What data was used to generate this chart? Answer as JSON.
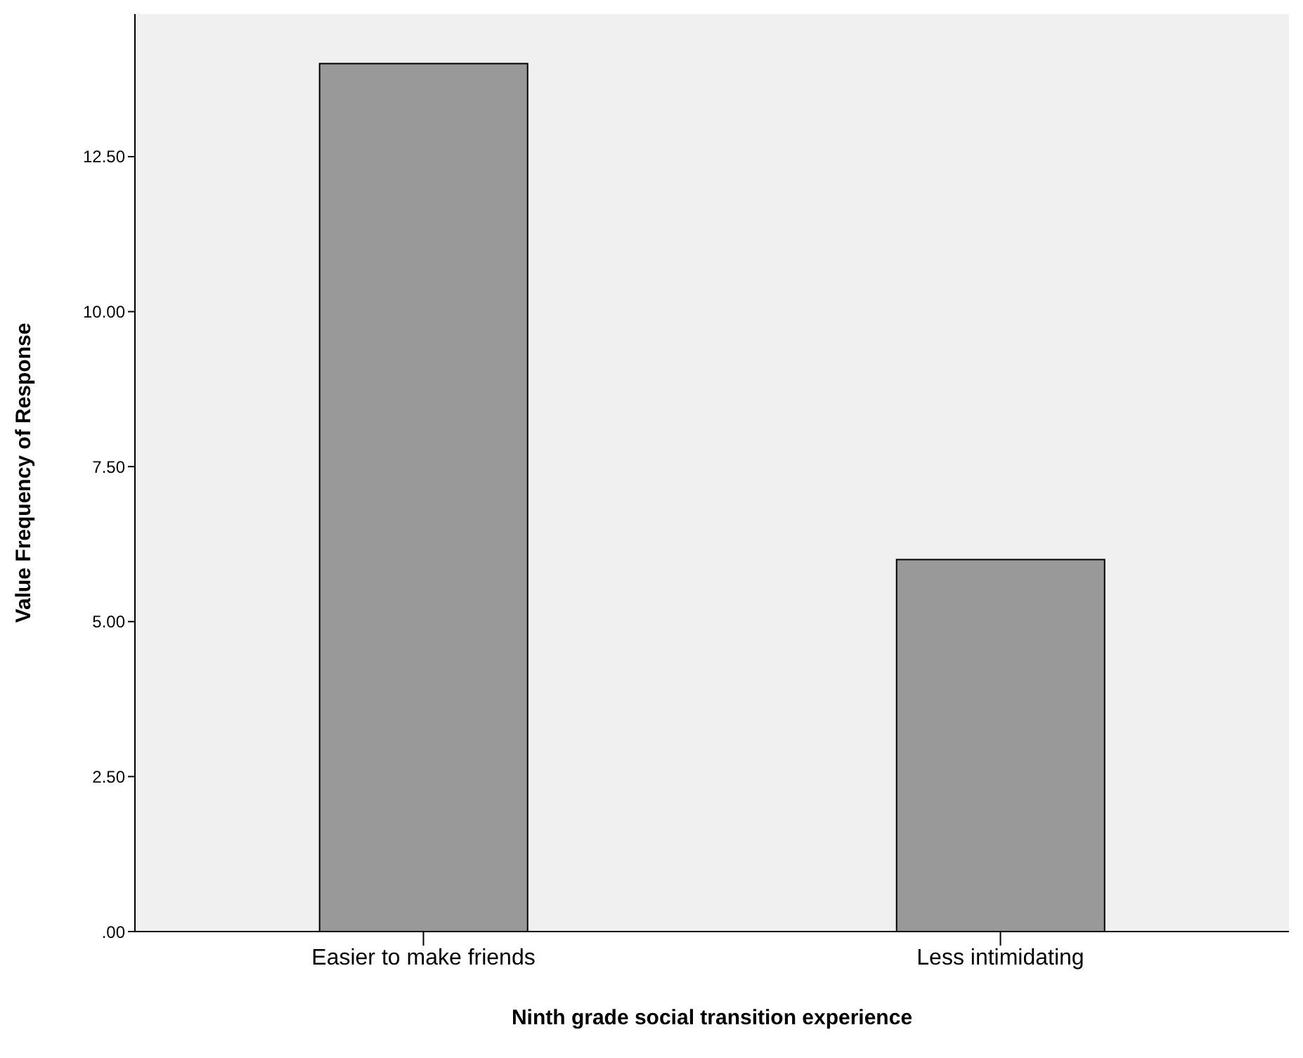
{
  "chart_data": {
    "type": "bar",
    "xlabel": "Ninth grade social transition experience",
    "ylabel": "Value Frequency of Response",
    "categories": [
      "Easier to make friends",
      "Less intimidating"
    ],
    "values": [
      14,
      6
    ],
    "color": "#999999",
    "ylim": [
      0,
      14.8
    ],
    "yticks": [
      {
        "value": 0,
        "label": ".00"
      },
      {
        "value": 2.5,
        "label": "2.50"
      },
      {
        "value": 5,
        "label": "5.00"
      },
      {
        "value": 7.5,
        "label": "7.50"
      },
      {
        "value": 10,
        "label": "10.00"
      },
      {
        "value": 12.5,
        "label": "12.50"
      }
    ],
    "grid": false,
    "legend": false
  }
}
